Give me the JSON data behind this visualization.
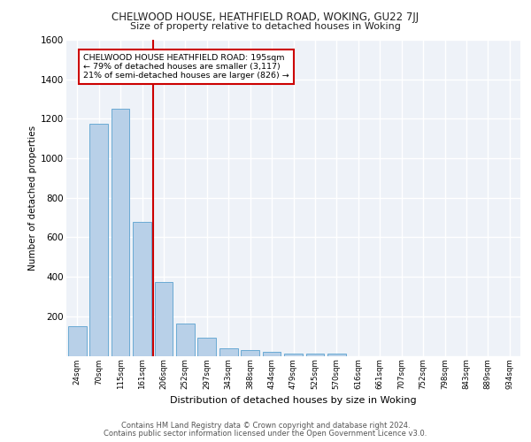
{
  "title1": "CHELWOOD HOUSE, HEATHFIELD ROAD, WOKING, GU22 7JJ",
  "title2": "Size of property relative to detached houses in Woking",
  "xlabel": "Distribution of detached houses by size in Woking",
  "ylabel": "Number of detached properties",
  "footer1": "Contains HM Land Registry data © Crown copyright and database right 2024.",
  "footer2": "Contains public sector information licensed under the Open Government Licence v3.0.",
  "categories": [
    "24sqm",
    "70sqm",
    "115sqm",
    "161sqm",
    "206sqm",
    "252sqm",
    "297sqm",
    "343sqm",
    "388sqm",
    "434sqm",
    "479sqm",
    "525sqm",
    "570sqm",
    "616sqm",
    "661sqm",
    "707sqm",
    "752sqm",
    "798sqm",
    "843sqm",
    "889sqm",
    "934sqm"
  ],
  "values": [
    150,
    1175,
    1250,
    680,
    375,
    165,
    90,
    38,
    27,
    18,
    13,
    10,
    13,
    0,
    0,
    0,
    0,
    0,
    0,
    0,
    0
  ],
  "bar_color": "#b8d0e8",
  "bar_edge_color": "#6aaad4",
  "red_line_color": "#cc0000",
  "annotation_title": "CHELWOOD HOUSE HEATHFIELD ROAD: 195sqm",
  "annotation_line1": "← 79% of detached houses are smaller (3,117)",
  "annotation_line2": "21% of semi-detached houses are larger (826) →",
  "annotation_box_color": "#ffffff",
  "annotation_box_edge": "#cc0000",
  "bg_color": "#eef2f8",
  "grid_color": "#ffffff",
  "ylim": [
    0,
    1600
  ],
  "yticks": [
    0,
    200,
    400,
    600,
    800,
    1000,
    1200,
    1400,
    1600
  ],
  "red_line_index": 3.5
}
